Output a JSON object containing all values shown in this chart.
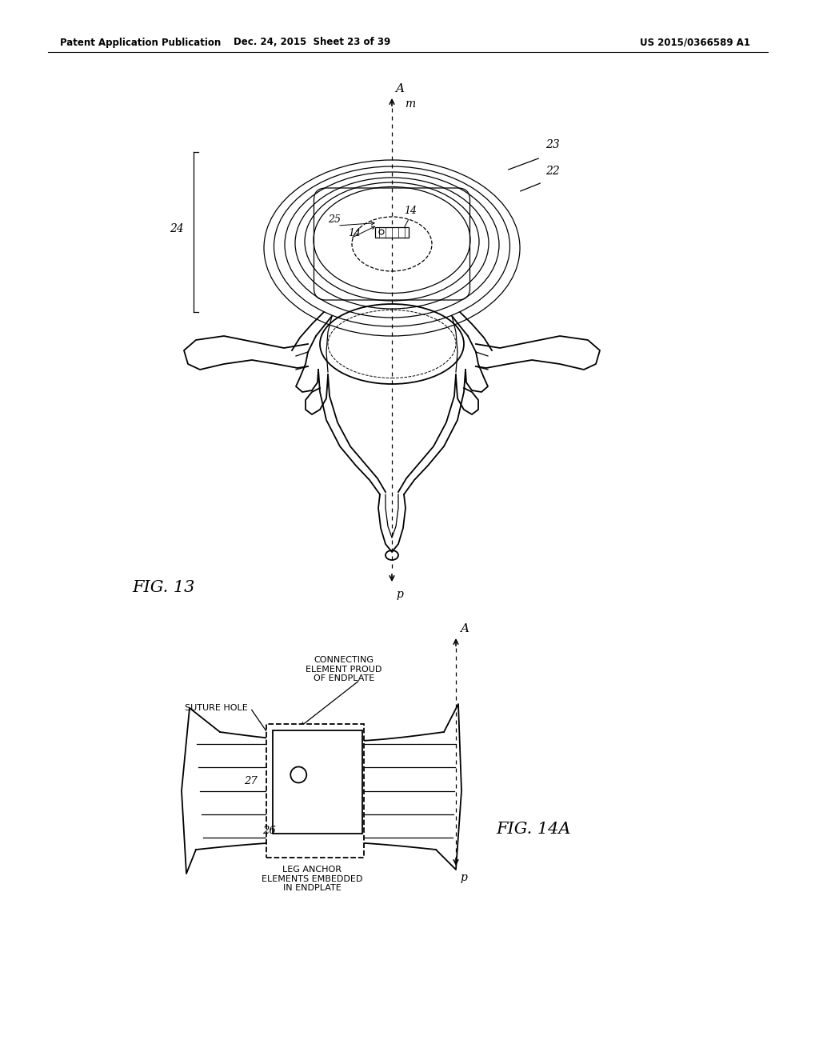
{
  "bg_color": "#ffffff",
  "header_left": "Patent Application Publication",
  "header_mid": "Dec. 24, 2015  Sheet 23 of 39",
  "header_right": "US 2015/0366589 A1",
  "fig13_label": "FIG. 13",
  "fig14a_label": "FIG. 14A",
  "label_A_top": "A",
  "label_m": "m",
  "label_p_bottom": "p",
  "label_22": "22",
  "label_23": "23",
  "label_24": "24",
  "label_14a": "14",
  "label_14b": "14",
  "label_25": "25",
  "label_27": "27",
  "label_26": "26",
  "label_connecting": "CONNECTING\nELEMENT PROUD\nOF ENDPLATE",
  "label_suture": "SUTURE HOLE",
  "label_leg": "LEG ANCHOR\nELEMENTS EMBEDDED\nIN ENDPLATE",
  "label_A2": "A",
  "label_p2": "p"
}
